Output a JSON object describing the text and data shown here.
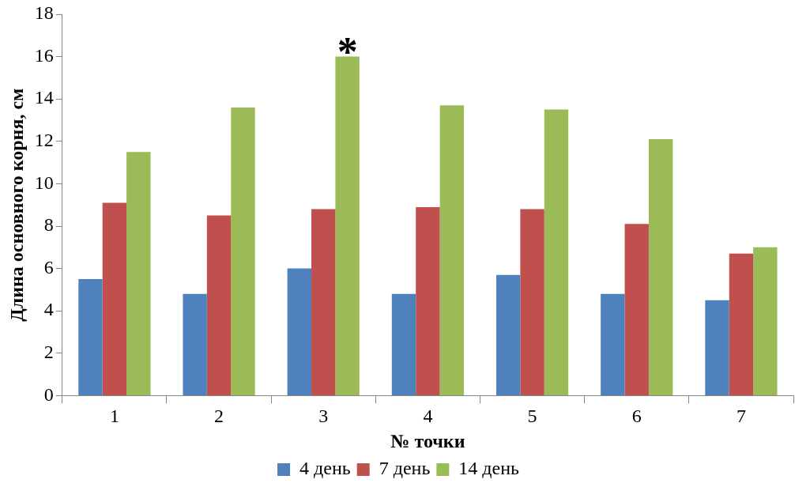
{
  "chart_data": {
    "type": "bar",
    "xlabel": "№ точки",
    "ylabel": "Длина основного корня, см",
    "categories": [
      "1",
      "2",
      "3",
      "4",
      "5",
      "6",
      "7"
    ],
    "series": [
      {
        "name": "4 день",
        "color": "#4f81bd",
        "values": [
          5.5,
          4.8,
          6.0,
          4.8,
          5.7,
          4.8,
          4.5
        ]
      },
      {
        "name": "7 день",
        "color": "#c0504d",
        "values": [
          9.1,
          8.5,
          8.8,
          8.9,
          8.8,
          8.1,
          6.7
        ]
      },
      {
        "name": "14 день",
        "color": "#9bbb59",
        "values": [
          11.5,
          13.6,
          16.0,
          13.7,
          13.5,
          12.1,
          7.0
        ]
      }
    ],
    "ylim": [
      0,
      18
    ],
    "yticks": [
      0,
      2,
      4,
      6,
      8,
      10,
      12,
      14,
      16,
      18
    ],
    "grid": false,
    "legend": "bottom",
    "annotations": [
      "*"
    ]
  }
}
